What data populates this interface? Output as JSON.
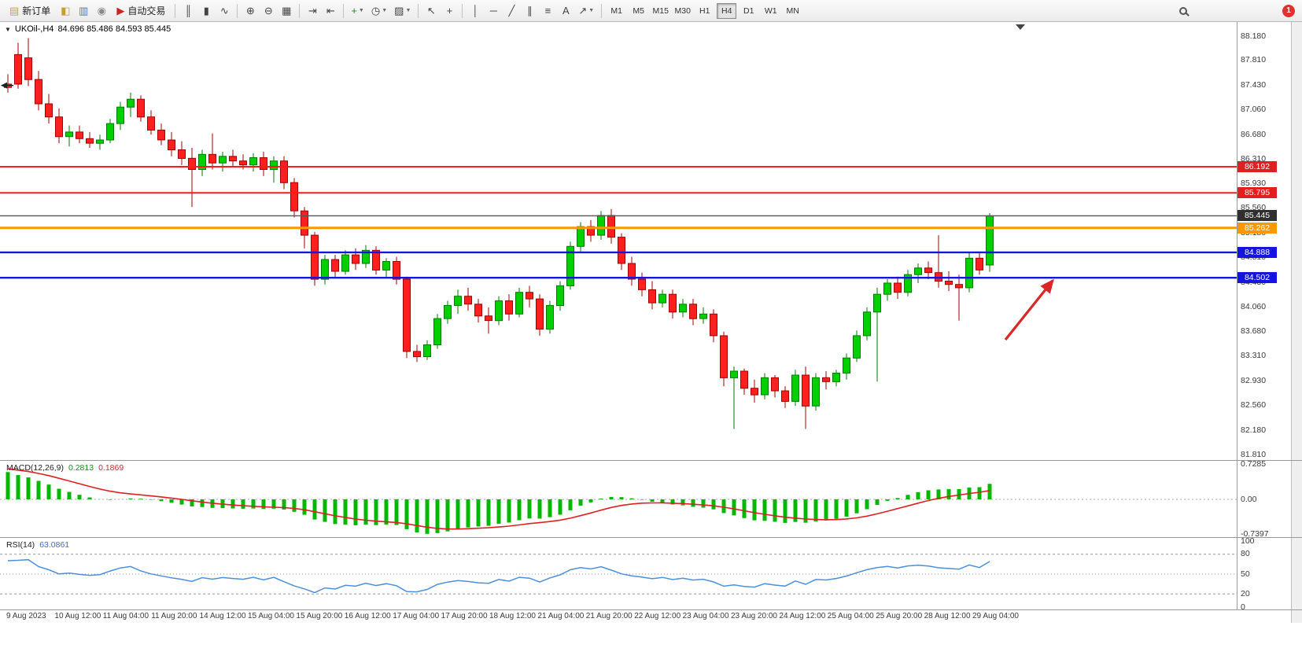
{
  "toolbar": {
    "new_order": "新订单",
    "auto_trading": "自动交易",
    "timeframes": [
      "M1",
      "M5",
      "M15",
      "M30",
      "H1",
      "H4",
      "D1",
      "W1",
      "MN"
    ],
    "active_timeframe": "H4",
    "badge_count": "1",
    "items": [
      {
        "kind": "labelbtn",
        "name": "new-order-button",
        "glyph": "▤",
        "color": "#caa23a",
        "label_path": "toolbar.new_order"
      },
      {
        "kind": "icon",
        "name": "market-watch-icon",
        "glyph": "◧",
        "color": "#c8a028"
      },
      {
        "kind": "icon",
        "name": "navigator-icon",
        "glyph": "▥",
        "color": "#4878c8"
      },
      {
        "kind": "icon",
        "name": "terminal-icon",
        "glyph": "◉",
        "color": "#8a8a8a"
      },
      {
        "kind": "labelbtn",
        "name": "auto-trading-button",
        "glyph": "▶",
        "color": "#cc2222",
        "label_path": "toolbar.auto_trading"
      },
      {
        "kind": "sep"
      },
      {
        "kind": "icon",
        "name": "bar-chart-icon",
        "glyph": "║",
        "color": "#444"
      },
      {
        "kind": "icon",
        "name": "candlestick-chart-icon",
        "glyph": "▮",
        "color": "#444"
      },
      {
        "kind": "icon",
        "name": "line-chart-icon",
        "glyph": "∿",
        "color": "#444"
      },
      {
        "kind": "sep"
      },
      {
        "kind": "icon",
        "name": "zoom-in-icon",
        "glyph": "⊕",
        "color": "#444"
      },
      {
        "kind": "icon",
        "name": "zoom-out-icon",
        "glyph": "⊖",
        "color": "#444"
      },
      {
        "kind": "icon",
        "name": "tile-windows-icon",
        "glyph": "▦",
        "color": "#444"
      },
      {
        "kind": "sep"
      },
      {
        "kind": "icon",
        "name": "auto-scroll-icon",
        "glyph": "⇥",
        "color": "#444"
      },
      {
        "kind": "icon",
        "name": "chart-shift-icon",
        "glyph": "⇤",
        "color": "#444"
      },
      {
        "kind": "sep"
      },
      {
        "kind": "icon",
        "name": "indicators-icon",
        "glyph": "+",
        "color": "#2a8a2a",
        "caret": true
      },
      {
        "kind": "icon",
        "name": "periods-icon",
        "glyph": "◷",
        "color": "#444",
        "caret": true
      },
      {
        "kind": "icon",
        "name": "templates-icon",
        "glyph": "▨",
        "color": "#444",
        "caret": true
      },
      {
        "kind": "sep"
      },
      {
        "kind": "icon",
        "name": "cursor-icon",
        "glyph": "↖",
        "color": "#444"
      },
      {
        "kind": "icon",
        "name": "crosshair-icon",
        "glyph": "+",
        "color": "#444"
      },
      {
        "kind": "sep"
      },
      {
        "kind": "icon",
        "name": "vertical-line-icon",
        "glyph": "│",
        "color": "#444"
      },
      {
        "kind": "icon",
        "name": "horizontal-line-icon",
        "glyph": "─",
        "color": "#444"
      },
      {
        "kind": "icon",
        "name": "trendline-icon",
        "glyph": "╱",
        "color": "#444"
      },
      {
        "kind": "icon",
        "name": "channel-icon",
        "glyph": "∥",
        "color": "#444"
      },
      {
        "kind": "icon",
        "name": "fibonacci-icon",
        "glyph": "≡",
        "color": "#444"
      },
      {
        "kind": "icon",
        "name": "text-icon",
        "glyph": "A",
        "color": "#444"
      },
      {
        "kind": "icon",
        "name": "arrows-icon",
        "glyph": "↗",
        "color": "#444",
        "caret": true
      },
      {
        "kind": "sep"
      },
      {
        "kind": "tf-group"
      },
      {
        "kind": "spacer"
      },
      {
        "kind": "search"
      },
      {
        "kind": "badge"
      }
    ]
  },
  "chart": {
    "symbol": "UKOil-",
    "period": "H4",
    "title_symbol": "UKOil-,H4",
    "title_ohlc": "84.696 85.486 84.593 85.445",
    "macd_label": "MACD(12,26,9)",
    "macd_value_main": "0.2813",
    "macd_value_signal": "0.1869",
    "rsi_label": "RSI(14)",
    "rsi_value": "63.0861"
  },
  "price_axis": {
    "labels": [
      "88.180",
      "87.810",
      "87.430",
      "87.060",
      "86.680",
      "86.310",
      "85.930",
      "85.560",
      "85.180",
      "84.810",
      "84.430",
      "84.060",
      "83.680",
      "83.310",
      "82.930",
      "82.560",
      "82.180",
      "81.810"
    ]
  },
  "macd_axis": {
    "labels": [
      "0.7285",
      "0.00",
      "-0.7397"
    ]
  },
  "rsi_axis": {
    "labels": [
      "100",
      "80",
      "50",
      "20",
      "0"
    ]
  },
  "time_axis": {
    "labels": [
      "9 Aug 2023",
      "10 Aug 12:00",
      "11 Aug 04:00",
      "11 Aug 20:00",
      "14 Aug 12:00",
      "15 Aug 04:00",
      "15 Aug 20:00",
      "16 Aug 12:00",
      "17 Aug 04:00",
      "17 Aug 20:00",
      "18 Aug 12:00",
      "21 Aug 04:00",
      "21 Aug 20:00",
      "22 Aug 12:00",
      "23 Aug 04:00",
      "23 Aug 20:00",
      "24 Aug 12:00",
      "25 Aug 04:00",
      "25 Aug 20:00",
      "28 Aug 12:00",
      "29 Aug 04:00"
    ]
  },
  "chart_data": {
    "type": "candlestick",
    "symbol": "UKOil-",
    "timeframe": "H4",
    "price_range": [
      81.81,
      88.18
    ],
    "colors": {
      "up": "#00d000",
      "up_stroke": "#007a00",
      "down": "#ff1f1f",
      "down_stroke": "#a00000",
      "macd_bar": "#00b800",
      "macd_signal": "#e02020",
      "rsi_line": "#4d8fdb"
    },
    "candles": [
      [
        87.45,
        87.6,
        87.32,
        87.4
      ],
      [
        87.9,
        88.08,
        87.38,
        87.45
      ],
      [
        87.85,
        88.15,
        87.42,
        87.52
      ],
      [
        87.52,
        87.65,
        87.05,
        87.15
      ],
      [
        87.15,
        87.3,
        86.85,
        86.95
      ],
      [
        86.95,
        87.08,
        86.55,
        86.65
      ],
      [
        86.65,
        86.82,
        86.5,
        86.72
      ],
      [
        86.72,
        86.82,
        86.55,
        86.62
      ],
      [
        86.62,
        86.72,
        86.48,
        86.55
      ],
      [
        86.55,
        86.68,
        86.45,
        86.6
      ],
      [
        86.6,
        86.92,
        86.55,
        86.85
      ],
      [
        86.85,
        87.18,
        86.75,
        87.1
      ],
      [
        87.1,
        87.32,
        86.95,
        87.22
      ],
      [
        87.22,
        87.28,
        86.88,
        86.95
      ],
      [
        86.95,
        87.05,
        86.68,
        86.75
      ],
      [
        86.75,
        86.85,
        86.52,
        86.6
      ],
      [
        86.6,
        86.72,
        86.35,
        86.45
      ],
      [
        86.45,
        86.58,
        86.22,
        86.32
      ],
      [
        86.32,
        86.48,
        85.58,
        86.15
      ],
      [
        86.15,
        86.45,
        86.05,
        86.38
      ],
      [
        86.38,
        86.7,
        86.15,
        86.25
      ],
      [
        86.25,
        86.42,
        86.12,
        86.35
      ],
      [
        86.35,
        86.45,
        86.18,
        86.28
      ],
      [
        86.28,
        86.38,
        86.15,
        86.22
      ],
      [
        86.22,
        86.4,
        86.12,
        86.33
      ],
      [
        86.33,
        86.42,
        86.05,
        86.15
      ],
      [
        86.15,
        86.35,
        85.95,
        86.28
      ],
      [
        86.28,
        86.35,
        85.85,
        85.95
      ],
      [
        85.95,
        86.02,
        85.42,
        85.52
      ],
      [
        85.52,
        85.58,
        84.95,
        85.15
      ],
      [
        85.15,
        85.2,
        84.38,
        84.48
      ],
      [
        84.48,
        84.85,
        84.4,
        84.78
      ],
      [
        84.78,
        84.85,
        84.5,
        84.6
      ],
      [
        84.6,
        84.92,
        84.55,
        84.85
      ],
      [
        84.85,
        84.95,
        84.62,
        84.72
      ],
      [
        84.72,
        85.0,
        84.65,
        84.92
      ],
      [
        84.92,
        84.98,
        84.55,
        84.62
      ],
      [
        84.62,
        84.8,
        84.5,
        84.75
      ],
      [
        84.75,
        84.82,
        84.4,
        84.48
      ],
      [
        84.48,
        84.52,
        83.28,
        83.38
      ],
      [
        83.38,
        83.48,
        83.22,
        83.3
      ],
      [
        83.3,
        83.55,
        83.25,
        83.48
      ],
      [
        83.48,
        83.95,
        83.42,
        83.88
      ],
      [
        83.88,
        84.15,
        83.8,
        84.08
      ],
      [
        84.08,
        84.32,
        83.95,
        84.22
      ],
      [
        84.22,
        84.35,
        84.0,
        84.1
      ],
      [
        84.1,
        84.18,
        83.82,
        83.92
      ],
      [
        83.92,
        84.05,
        83.65,
        83.85
      ],
      [
        83.85,
        84.22,
        83.78,
        84.15
      ],
      [
        84.15,
        84.25,
        83.85,
        83.95
      ],
      [
        83.95,
        84.35,
        83.9,
        84.28
      ],
      [
        84.28,
        84.38,
        84.05,
        84.18
      ],
      [
        84.18,
        84.25,
        83.62,
        83.72
      ],
      [
        83.72,
        84.15,
        83.65,
        84.08
      ],
      [
        84.08,
        84.45,
        84.0,
        84.38
      ],
      [
        84.38,
        85.05,
        84.32,
        84.98
      ],
      [
        84.98,
        85.35,
        84.9,
        85.28
      ],
      [
        85.28,
        85.38,
        85.05,
        85.15
      ],
      [
        85.15,
        85.52,
        85.08,
        85.45
      ],
      [
        85.45,
        85.55,
        85.02,
        85.12
      ],
      [
        85.12,
        85.18,
        84.62,
        84.72
      ],
      [
        84.72,
        84.82,
        84.38,
        84.48
      ],
      [
        84.48,
        84.58,
        84.22,
        84.32
      ],
      [
        84.32,
        84.45,
        84.02,
        84.12
      ],
      [
        84.12,
        84.32,
        84.05,
        84.25
      ],
      [
        84.25,
        84.32,
        83.88,
        83.98
      ],
      [
        83.98,
        84.18,
        83.9,
        84.1
      ],
      [
        84.1,
        84.18,
        83.78,
        83.88
      ],
      [
        83.88,
        84.05,
        83.8,
        83.95
      ],
      [
        83.95,
        84.02,
        83.52,
        83.62
      ],
      [
        83.62,
        83.68,
        82.85,
        82.98
      ],
      [
        82.98,
        83.15,
        82.2,
        83.08
      ],
      [
        83.08,
        83.12,
        82.72,
        82.82
      ],
      [
        82.82,
        82.95,
        82.6,
        82.72
      ],
      [
        82.72,
        83.05,
        82.65,
        82.98
      ],
      [
        82.98,
        83.02,
        82.68,
        82.78
      ],
      [
        82.78,
        82.85,
        82.52,
        82.62
      ],
      [
        82.62,
        83.1,
        82.55,
        83.02
      ],
      [
        83.02,
        83.15,
        82.2,
        82.55
      ],
      [
        82.55,
        83.05,
        82.48,
        82.98
      ],
      [
        82.98,
        83.08,
        82.8,
        82.92
      ],
      [
        82.92,
        83.1,
        82.85,
        83.05
      ],
      [
        83.05,
        83.35,
        82.95,
        83.28
      ],
      [
        83.28,
        83.7,
        83.22,
        83.62
      ],
      [
        83.62,
        84.05,
        83.55,
        83.98
      ],
      [
        83.98,
        84.35,
        82.92,
        84.25
      ],
      [
        84.25,
        84.48,
        84.15,
        84.42
      ],
      [
        84.42,
        84.52,
        84.18,
        84.28
      ],
      [
        84.28,
        84.62,
        84.22,
        84.55
      ],
      [
        84.55,
        84.72,
        84.42,
        84.65
      ],
      [
        84.65,
        84.75,
        84.48,
        84.58
      ],
      [
        84.58,
        85.15,
        84.35,
        84.45
      ],
      [
        84.45,
        84.6,
        84.3,
        84.4
      ],
      [
        84.4,
        84.55,
        83.85,
        84.35
      ],
      [
        84.35,
        84.88,
        84.28,
        84.8
      ],
      [
        84.8,
        84.9,
        84.55,
        84.62
      ],
      [
        84.696,
        85.486,
        84.593,
        85.445
      ]
    ],
    "hlines": [
      {
        "price": 86.192,
        "label": "86.192",
        "color": "#ff1a1a",
        "width": 2,
        "tag_bg": "#e02020"
      },
      {
        "price": 85.795,
        "label": "85.795",
        "color": "#ff1a1a",
        "width": 2,
        "tag_bg": "#e02020"
      },
      {
        "price": 85.445,
        "label": "85.445",
        "color": "#555555",
        "width": 1.4,
        "tag_bg": "#2f2f2f"
      },
      {
        "price": 85.262,
        "label": "85.262",
        "color": "#ff9800",
        "width": 3,
        "tag_bg": "#ff9800"
      },
      {
        "price": 84.888,
        "label": "84.888",
        "color": "#1515e0",
        "width": 2.4,
        "tag_bg": "#1515e0"
      },
      {
        "price": 84.502,
        "label": "84.502",
        "color": "#1515e0",
        "width": 2.4,
        "tag_bg": "#1515e0"
      }
    ],
    "indicators": {
      "macd": {
        "params": [
          12,
          26,
          9
        ],
        "current_macd": 0.2813,
        "current_signal": 0.1869,
        "scale_top": 0.7285,
        "scale_bottom": -0.7397
      },
      "rsi": {
        "period": 14,
        "current": 63.0861,
        "levels": [
          20,
          50,
          80
        ],
        "range": [
          0,
          100
        ]
      }
    },
    "annotations": [
      {
        "type": "arrow",
        "color": "#d92626",
        "from_xy": [
          1278,
          432
        ],
        "to_xy": [
          1338,
          357
        ]
      }
    ]
  }
}
